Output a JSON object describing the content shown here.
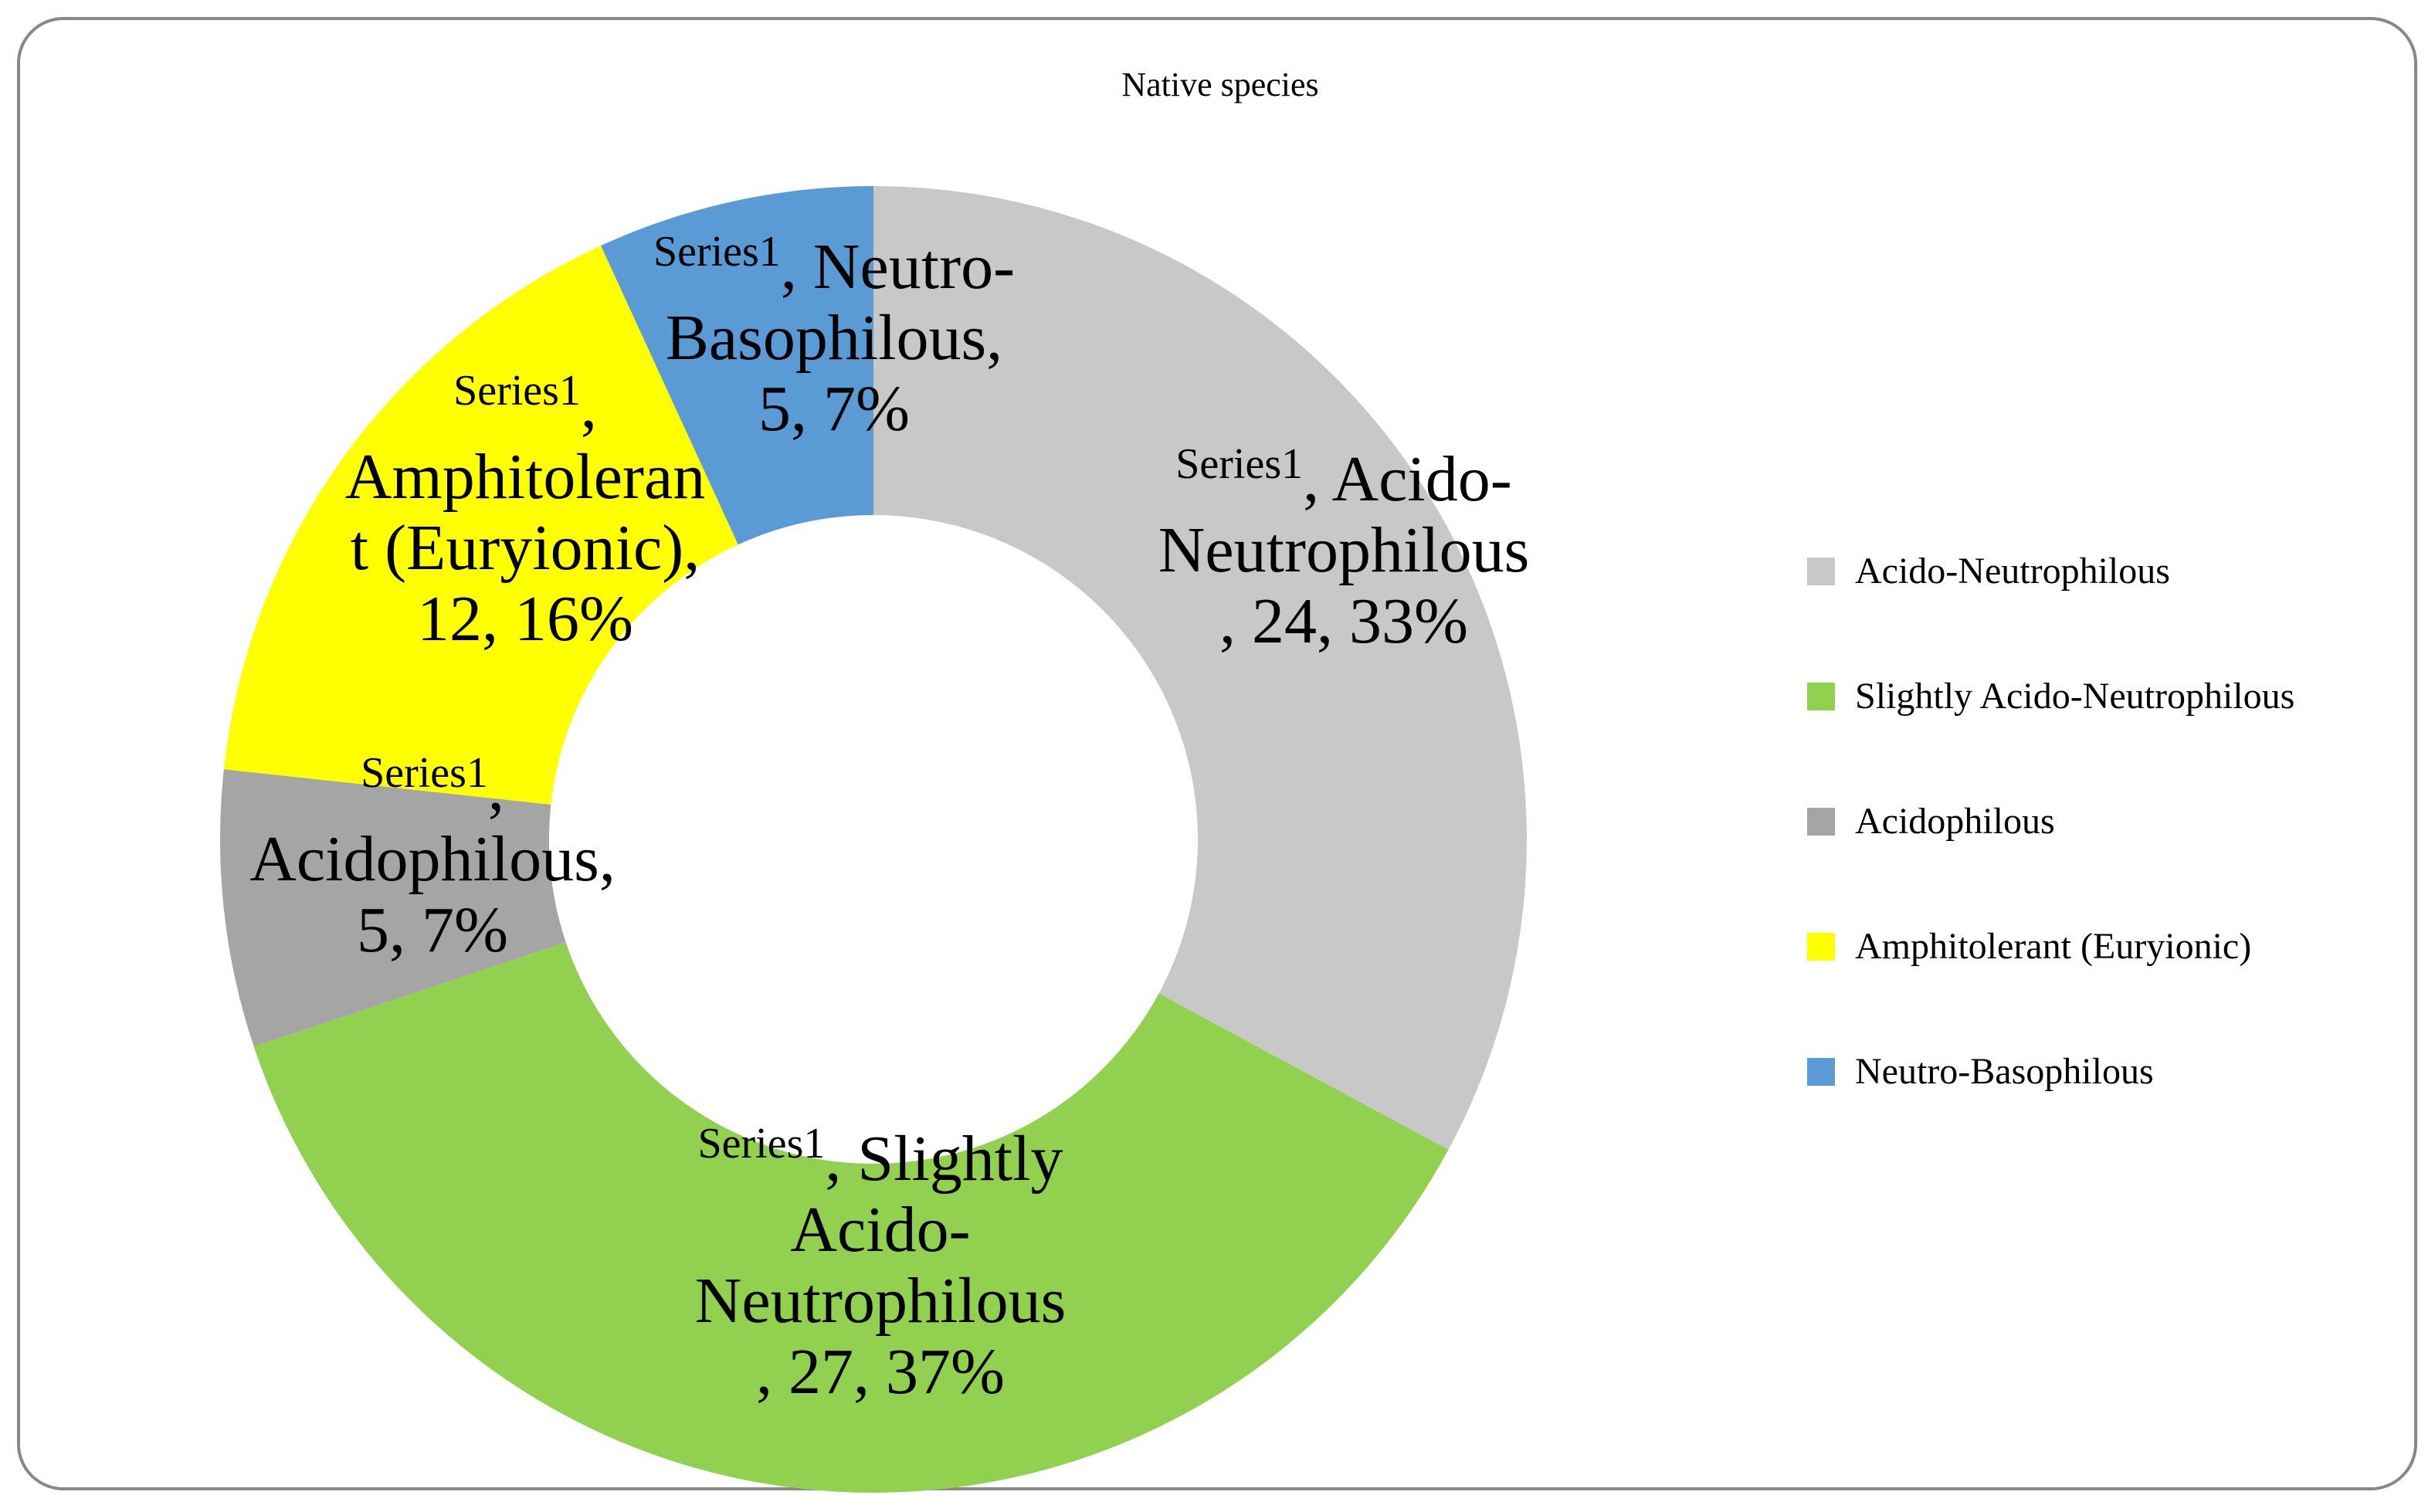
{
  "chart_data": {
    "type": "pie",
    "title": "Native species",
    "series_name": "Series1",
    "categories": [
      "Acido-Neutrophilous",
      "Slightly Acido-Neutrophilous",
      "Acidophilous",
      "Amphitolerant (Euryionic)",
      "Neutro-Basophilous"
    ],
    "values": [
      24,
      27,
      5,
      12,
      5
    ],
    "percentages": [
      "33%",
      "37%",
      "7%",
      "16%",
      "7%"
    ],
    "colors": [
      "#c8c8c8",
      "#92d050",
      "#a5a5a5",
      "#ffff00",
      "#5b9bd5"
    ],
    "donut": true,
    "legend_position": "right",
    "data_labels": [
      {
        "series": "Series1",
        "lines": [
          ", Acido-",
          "Neutrophilous",
          ", 24, 33%"
        ]
      },
      {
        "series": "Series1",
        "lines": [
          ", Slightly",
          "Acido-",
          "Neutrophilous",
          ", 27, 37%"
        ]
      },
      {
        "series": "Series1",
        "lines": [
          ",",
          "Acidophilous,",
          "5, 7%"
        ]
      },
      {
        "series": "Series1",
        "lines": [
          ",",
          "Amphitoleran",
          "t (Euryionic),",
          "12, 16%"
        ]
      },
      {
        "series": "Series1",
        "lines": [
          ", Neutro-",
          "Basophilous,",
          "5, 7%"
        ]
      }
    ]
  }
}
